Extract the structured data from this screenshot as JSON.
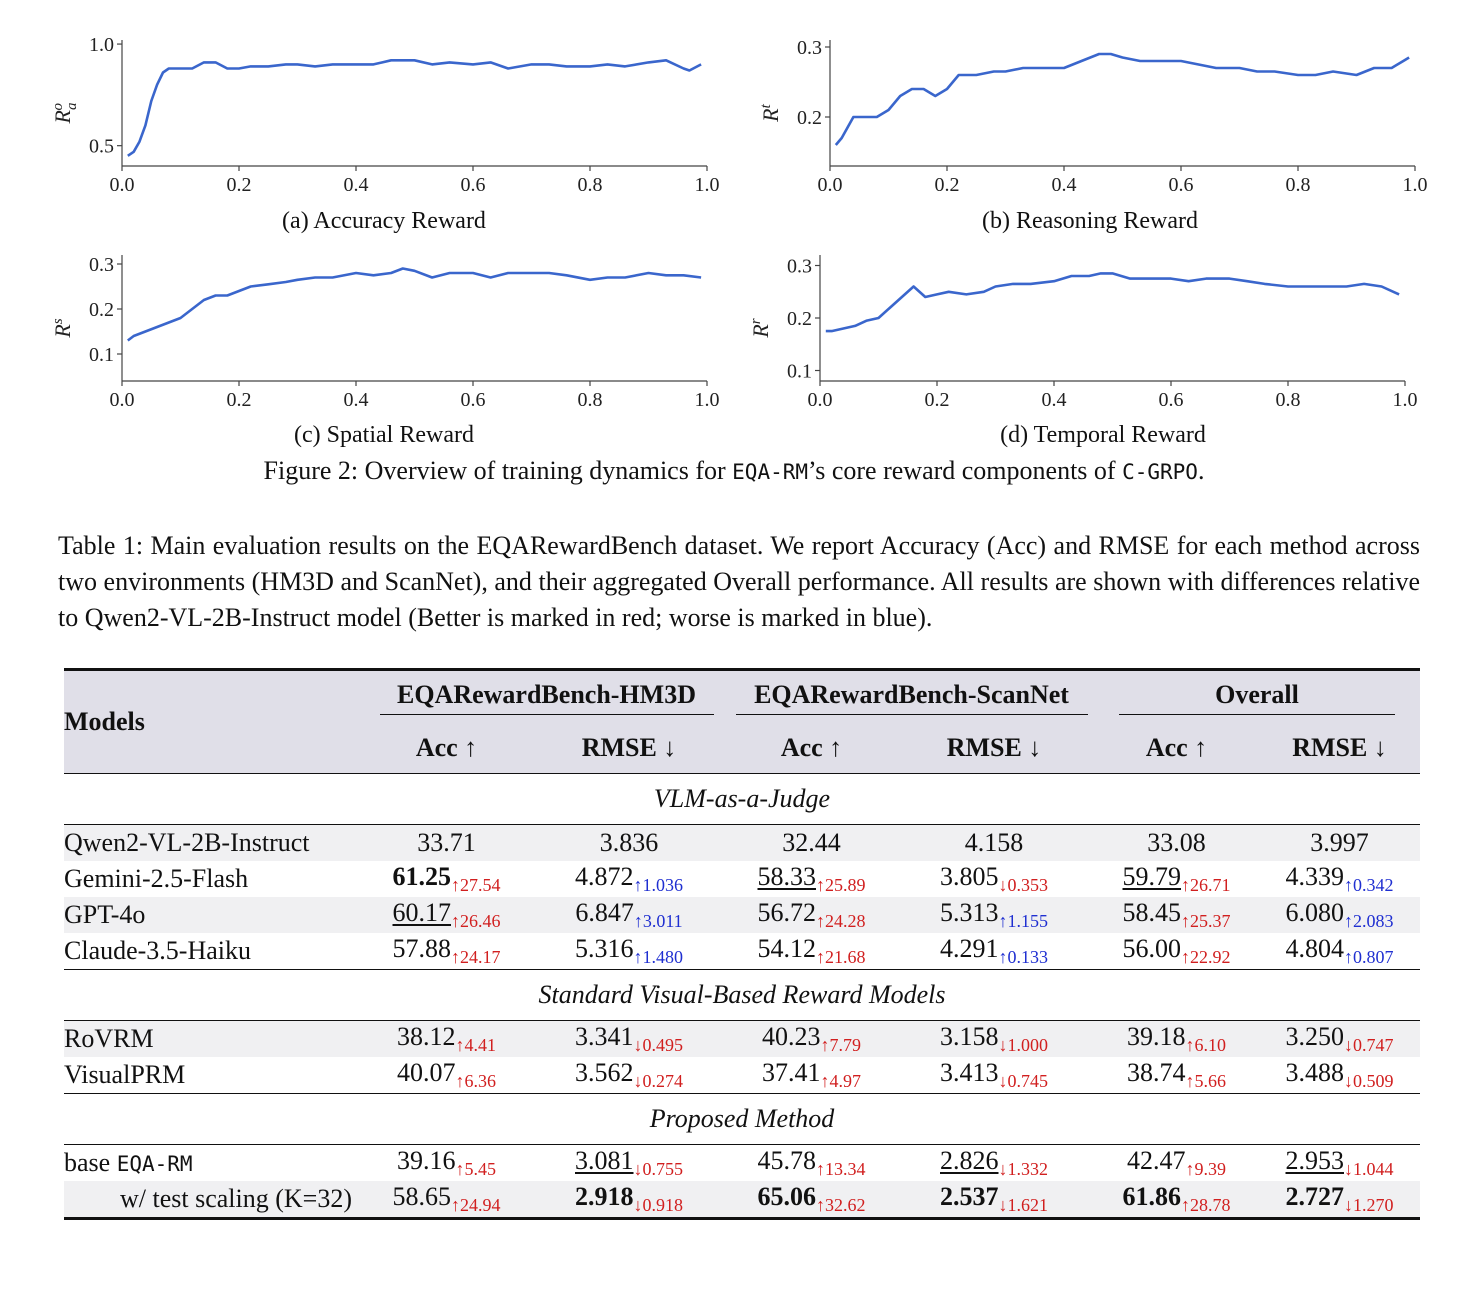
{
  "figure": {
    "panels": [
      {
        "id": "a",
        "caption": "(a) Accuracy Reward",
        "ylabel_base": "R",
        "ylabel_sup": "o",
        "ylabel_sub": "a"
      },
      {
        "id": "b",
        "caption": "(b) Reasoning Reward",
        "ylabel_base": "R",
        "ylabel_sup": "t",
        "ylabel_sub": ""
      },
      {
        "id": "c",
        "caption": "(c) Spatial Reward",
        "ylabel_base": "R",
        "ylabel_sup": "s",
        "ylabel_sub": ""
      },
      {
        "id": "d",
        "caption": "(d) Temporal Reward",
        "ylabel_base": "R",
        "ylabel_sup": "r",
        "ylabel_sub": ""
      }
    ],
    "caption_pre": "Figure 2: Overview of training dynamics for ",
    "caption_code1": "EQA-RM",
    "caption_mid": "’s core reward components of ",
    "caption_code2": "C-GRPO",
    "caption_post": "."
  },
  "chart_data": [
    {
      "type": "line",
      "panel": "a",
      "xlim": [
        0.0,
        1.0
      ],
      "ylim": [
        0.4,
        1.02
      ],
      "xticks": [
        "0.0",
        "0.2",
        "0.4",
        "0.6",
        "0.8",
        "1.0"
      ],
      "yticks": [
        "0.5",
        "1.0"
      ],
      "ytick_values": [
        0.5,
        1.0
      ],
      "series": [
        {
          "x": [
            0.01,
            0.02,
            0.03,
            0.04,
            0.05,
            0.06,
            0.07,
            0.08,
            0.1,
            0.12,
            0.14,
            0.16,
            0.18,
            0.2,
            0.22,
            0.25,
            0.28,
            0.3,
            0.33,
            0.36,
            0.4,
            0.43,
            0.46,
            0.5,
            0.53,
            0.56,
            0.6,
            0.63,
            0.66,
            0.7,
            0.73,
            0.76,
            0.8,
            0.83,
            0.86,
            0.9,
            0.93,
            0.96,
            0.97,
            0.99
          ],
          "values": [
            0.45,
            0.47,
            0.52,
            0.6,
            0.72,
            0.8,
            0.86,
            0.88,
            0.88,
            0.88,
            0.91,
            0.91,
            0.88,
            0.88,
            0.89,
            0.89,
            0.9,
            0.9,
            0.89,
            0.9,
            0.9,
            0.9,
            0.92,
            0.92,
            0.9,
            0.91,
            0.9,
            0.91,
            0.88,
            0.9,
            0.9,
            0.89,
            0.89,
            0.9,
            0.89,
            0.91,
            0.92,
            0.88,
            0.87,
            0.9
          ]
        }
      ]
    },
    {
      "type": "line",
      "panel": "b",
      "xlim": [
        0.0,
        1.0
      ],
      "ylim": [
        0.13,
        0.31
      ],
      "xticks": [
        "0.0",
        "0.2",
        "0.4",
        "0.6",
        "0.8",
        "1.0"
      ],
      "yticks": [
        "0.2",
        "0.3"
      ],
      "ytick_values": [
        0.2,
        0.3
      ],
      "series": [
        {
          "x": [
            0.01,
            0.02,
            0.04,
            0.06,
            0.08,
            0.1,
            0.12,
            0.14,
            0.16,
            0.18,
            0.2,
            0.22,
            0.25,
            0.28,
            0.3,
            0.33,
            0.36,
            0.4,
            0.43,
            0.46,
            0.48,
            0.5,
            0.53,
            0.56,
            0.6,
            0.63,
            0.66,
            0.7,
            0.73,
            0.76,
            0.8,
            0.83,
            0.86,
            0.9,
            0.93,
            0.96,
            0.98,
            0.99
          ],
          "values": [
            0.16,
            0.17,
            0.2,
            0.2,
            0.2,
            0.21,
            0.23,
            0.24,
            0.24,
            0.23,
            0.24,
            0.26,
            0.26,
            0.265,
            0.265,
            0.27,
            0.27,
            0.27,
            0.28,
            0.29,
            0.29,
            0.285,
            0.28,
            0.28,
            0.28,
            0.275,
            0.27,
            0.27,
            0.265,
            0.265,
            0.26,
            0.26,
            0.265,
            0.26,
            0.27,
            0.27,
            0.28,
            0.285
          ]
        }
      ]
    },
    {
      "type": "line",
      "panel": "c",
      "xlim": [
        0.0,
        1.0
      ],
      "ylim": [
        0.04,
        0.32
      ],
      "xticks": [
        "0.0",
        "0.2",
        "0.4",
        "0.6",
        "0.8",
        "1.0"
      ],
      "yticks": [
        "0.1",
        "0.2",
        "0.3"
      ],
      "ytick_values": [
        0.1,
        0.2,
        0.3
      ],
      "series": [
        {
          "x": [
            0.01,
            0.02,
            0.04,
            0.06,
            0.08,
            0.1,
            0.12,
            0.14,
            0.16,
            0.18,
            0.2,
            0.22,
            0.25,
            0.28,
            0.3,
            0.33,
            0.36,
            0.4,
            0.43,
            0.46,
            0.48,
            0.5,
            0.53,
            0.56,
            0.6,
            0.63,
            0.66,
            0.7,
            0.73,
            0.76,
            0.8,
            0.83,
            0.86,
            0.9,
            0.93,
            0.96,
            0.99
          ],
          "values": [
            0.13,
            0.14,
            0.15,
            0.16,
            0.17,
            0.18,
            0.2,
            0.22,
            0.23,
            0.23,
            0.24,
            0.25,
            0.255,
            0.26,
            0.265,
            0.27,
            0.27,
            0.28,
            0.275,
            0.28,
            0.29,
            0.285,
            0.27,
            0.28,
            0.28,
            0.27,
            0.28,
            0.28,
            0.28,
            0.275,
            0.265,
            0.27,
            0.27,
            0.28,
            0.275,
            0.275,
            0.27
          ]
        }
      ]
    },
    {
      "type": "line",
      "panel": "d",
      "xlim": [
        0.0,
        1.0
      ],
      "ylim": [
        0.08,
        0.32
      ],
      "xticks": [
        "0.0",
        "0.2",
        "0.4",
        "0.6",
        "0.8",
        "1.0"
      ],
      "yticks": [
        "0.1",
        "0.2",
        "0.3"
      ],
      "ytick_values": [
        0.1,
        0.2,
        0.3
      ],
      "series": [
        {
          "x": [
            0.01,
            0.02,
            0.04,
            0.06,
            0.08,
            0.1,
            0.12,
            0.14,
            0.16,
            0.18,
            0.2,
            0.22,
            0.25,
            0.28,
            0.3,
            0.33,
            0.36,
            0.4,
            0.43,
            0.46,
            0.48,
            0.5,
            0.53,
            0.56,
            0.6,
            0.63,
            0.66,
            0.7,
            0.73,
            0.76,
            0.8,
            0.83,
            0.86,
            0.9,
            0.93,
            0.96,
            0.99
          ],
          "values": [
            0.175,
            0.175,
            0.18,
            0.185,
            0.195,
            0.2,
            0.22,
            0.24,
            0.26,
            0.24,
            0.245,
            0.25,
            0.245,
            0.25,
            0.26,
            0.265,
            0.265,
            0.27,
            0.28,
            0.28,
            0.285,
            0.285,
            0.275,
            0.275,
            0.275,
            0.27,
            0.275,
            0.275,
            0.27,
            0.265,
            0.26,
            0.26,
            0.26,
            0.26,
            0.265,
            0.26,
            0.245
          ]
        }
      ]
    }
  ],
  "table": {
    "caption": "Table 1: Main evaluation results on the EQARewardBench dataset. We report Accuracy (Acc) and RMSE for each method across two environments (HM3D and ScanNet), and their aggregated Overall performance. All results are shown with differences relative to Qwen2-VL-2B-Instruct model (Better is marked in red; worse is marked in blue).",
    "models_header": "Models",
    "groups": [
      "EQARewardBench-HM3D",
      "EQARewardBench-ScanNet",
      "Overall"
    ],
    "subheaders": [
      "Acc ↑",
      "RMSE ↓",
      "Acc ↑",
      "RMSE ↓",
      "Acc ↑",
      "RMSE ↓"
    ],
    "sections": [
      {
        "title": "VLM-as-a-Judge",
        "rows": [
          {
            "model": "Qwen2-VL-2B-Instruct",
            "shade": true,
            "cells": [
              {
                "v": "33.71",
                "d": "",
                "c": ""
              },
              {
                "v": "3.836",
                "d": "",
                "c": ""
              },
              {
                "v": "32.44",
                "d": "",
                "c": ""
              },
              {
                "v": "4.158",
                "d": "",
                "c": ""
              },
              {
                "v": "33.08",
                "d": "",
                "c": ""
              },
              {
                "v": "3.997",
                "d": "",
                "c": ""
              }
            ]
          },
          {
            "model": "Gemini-2.5-Flash",
            "shade": false,
            "cells": [
              {
                "v": "61.25",
                "d": "↑27.54",
                "c": "red",
                "s": "b"
              },
              {
                "v": "4.872",
                "d": "↑1.036",
                "c": "blue"
              },
              {
                "v": "58.33",
                "d": "↑25.89",
                "c": "red",
                "s": "u"
              },
              {
                "v": "3.805",
                "d": "↓0.353",
                "c": "red"
              },
              {
                "v": "59.79",
                "d": "↑26.71",
                "c": "red",
                "s": "u"
              },
              {
                "v": "4.339",
                "d": "↑0.342",
                "c": "blue"
              }
            ]
          },
          {
            "model": "GPT-4o",
            "shade": true,
            "cells": [
              {
                "v": "60.17",
                "d": "↑26.46",
                "c": "red",
                "s": "u"
              },
              {
                "v": "6.847",
                "d": "↑3.011",
                "c": "blue"
              },
              {
                "v": "56.72",
                "d": "↑24.28",
                "c": "red"
              },
              {
                "v": "5.313",
                "d": "↑1.155",
                "c": "blue"
              },
              {
                "v": "58.45",
                "d": "↑25.37",
                "c": "red"
              },
              {
                "v": "6.080",
                "d": "↑2.083",
                "c": "blue"
              }
            ]
          },
          {
            "model": "Claude-3.5-Haiku",
            "shade": false,
            "cells": [
              {
                "v": "57.88",
                "d": "↑24.17",
                "c": "red"
              },
              {
                "v": "5.316",
                "d": "↑1.480",
                "c": "blue"
              },
              {
                "v": "54.12",
                "d": "↑21.68",
                "c": "red"
              },
              {
                "v": "4.291",
                "d": "↑0.133",
                "c": "blue"
              },
              {
                "v": "56.00",
                "d": "↑22.92",
                "c": "red"
              },
              {
                "v": "4.804",
                "d": "↑0.807",
                "c": "blue"
              }
            ]
          }
        ]
      },
      {
        "title": "Standard Visual-Based Reward Models",
        "rows": [
          {
            "model": "RoVRM",
            "shade": true,
            "cells": [
              {
                "v": "38.12",
                "d": "↑4.41",
                "c": "red"
              },
              {
                "v": "3.341",
                "d": "↓0.495",
                "c": "red"
              },
              {
                "v": "40.23",
                "d": "↑7.79",
                "c": "red"
              },
              {
                "v": "3.158",
                "d": "↓1.000",
                "c": "red"
              },
              {
                "v": "39.18",
                "d": "↑6.10",
                "c": "red"
              },
              {
                "v": "3.250",
                "d": "↓0.747",
                "c": "red"
              }
            ]
          },
          {
            "model": "VisualPRM",
            "shade": false,
            "cells": [
              {
                "v": "40.07",
                "d": "↑6.36",
                "c": "red"
              },
              {
                "v": "3.562",
                "d": "↓0.274",
                "c": "red"
              },
              {
                "v": "37.41",
                "d": "↑4.97",
                "c": "red"
              },
              {
                "v": "3.413",
                "d": "↓0.745",
                "c": "red"
              },
              {
                "v": "38.74",
                "d": "↑5.66",
                "c": "red"
              },
              {
                "v": "3.488",
                "d": "↓0.509",
                "c": "red"
              }
            ]
          }
        ]
      },
      {
        "title": "Proposed Method",
        "rows": [
          {
            "model": "base ",
            "model_code": "EQA-RM",
            "shade": false,
            "cells": [
              {
                "v": "39.16",
                "d": "↑5.45",
                "c": "red"
              },
              {
                "v": "3.081",
                "d": "↓0.755",
                "c": "red",
                "s": "u"
              },
              {
                "v": "45.78",
                "d": "↑13.34",
                "c": "red"
              },
              {
                "v": "2.826",
                "d": "↓1.332",
                "c": "red",
                "s": "u"
              },
              {
                "v": "42.47",
                "d": "↑9.39",
                "c": "red"
              },
              {
                "v": "2.953",
                "d": "↓1.044",
                "c": "red",
                "s": "u"
              }
            ]
          },
          {
            "model": "    w/ test scaling (K=32)",
            "shade": true,
            "indent": true,
            "cells": [
              {
                "v": "58.65",
                "d": "↑24.94",
                "c": "red"
              },
              {
                "v": "2.918",
                "d": "↓0.918",
                "c": "red",
                "s": "b"
              },
              {
                "v": "65.06",
                "d": "↑32.62",
                "c": "red",
                "s": "b"
              },
              {
                "v": "2.537",
                "d": "↓1.621",
                "c": "red",
                "s": "b"
              },
              {
                "v": "61.86",
                "d": "↑28.78",
                "c": "red",
                "s": "b"
              },
              {
                "v": "2.727",
                "d": "↓1.270",
                "c": "red",
                "s": "b"
              }
            ]
          }
        ]
      }
    ]
  },
  "colors": {
    "line": "#3a66cc",
    "raw": "#d3dcee",
    "better": "#d11f1f",
    "worse": "#1f2fd1",
    "header_bg": "#e0dfe8"
  }
}
